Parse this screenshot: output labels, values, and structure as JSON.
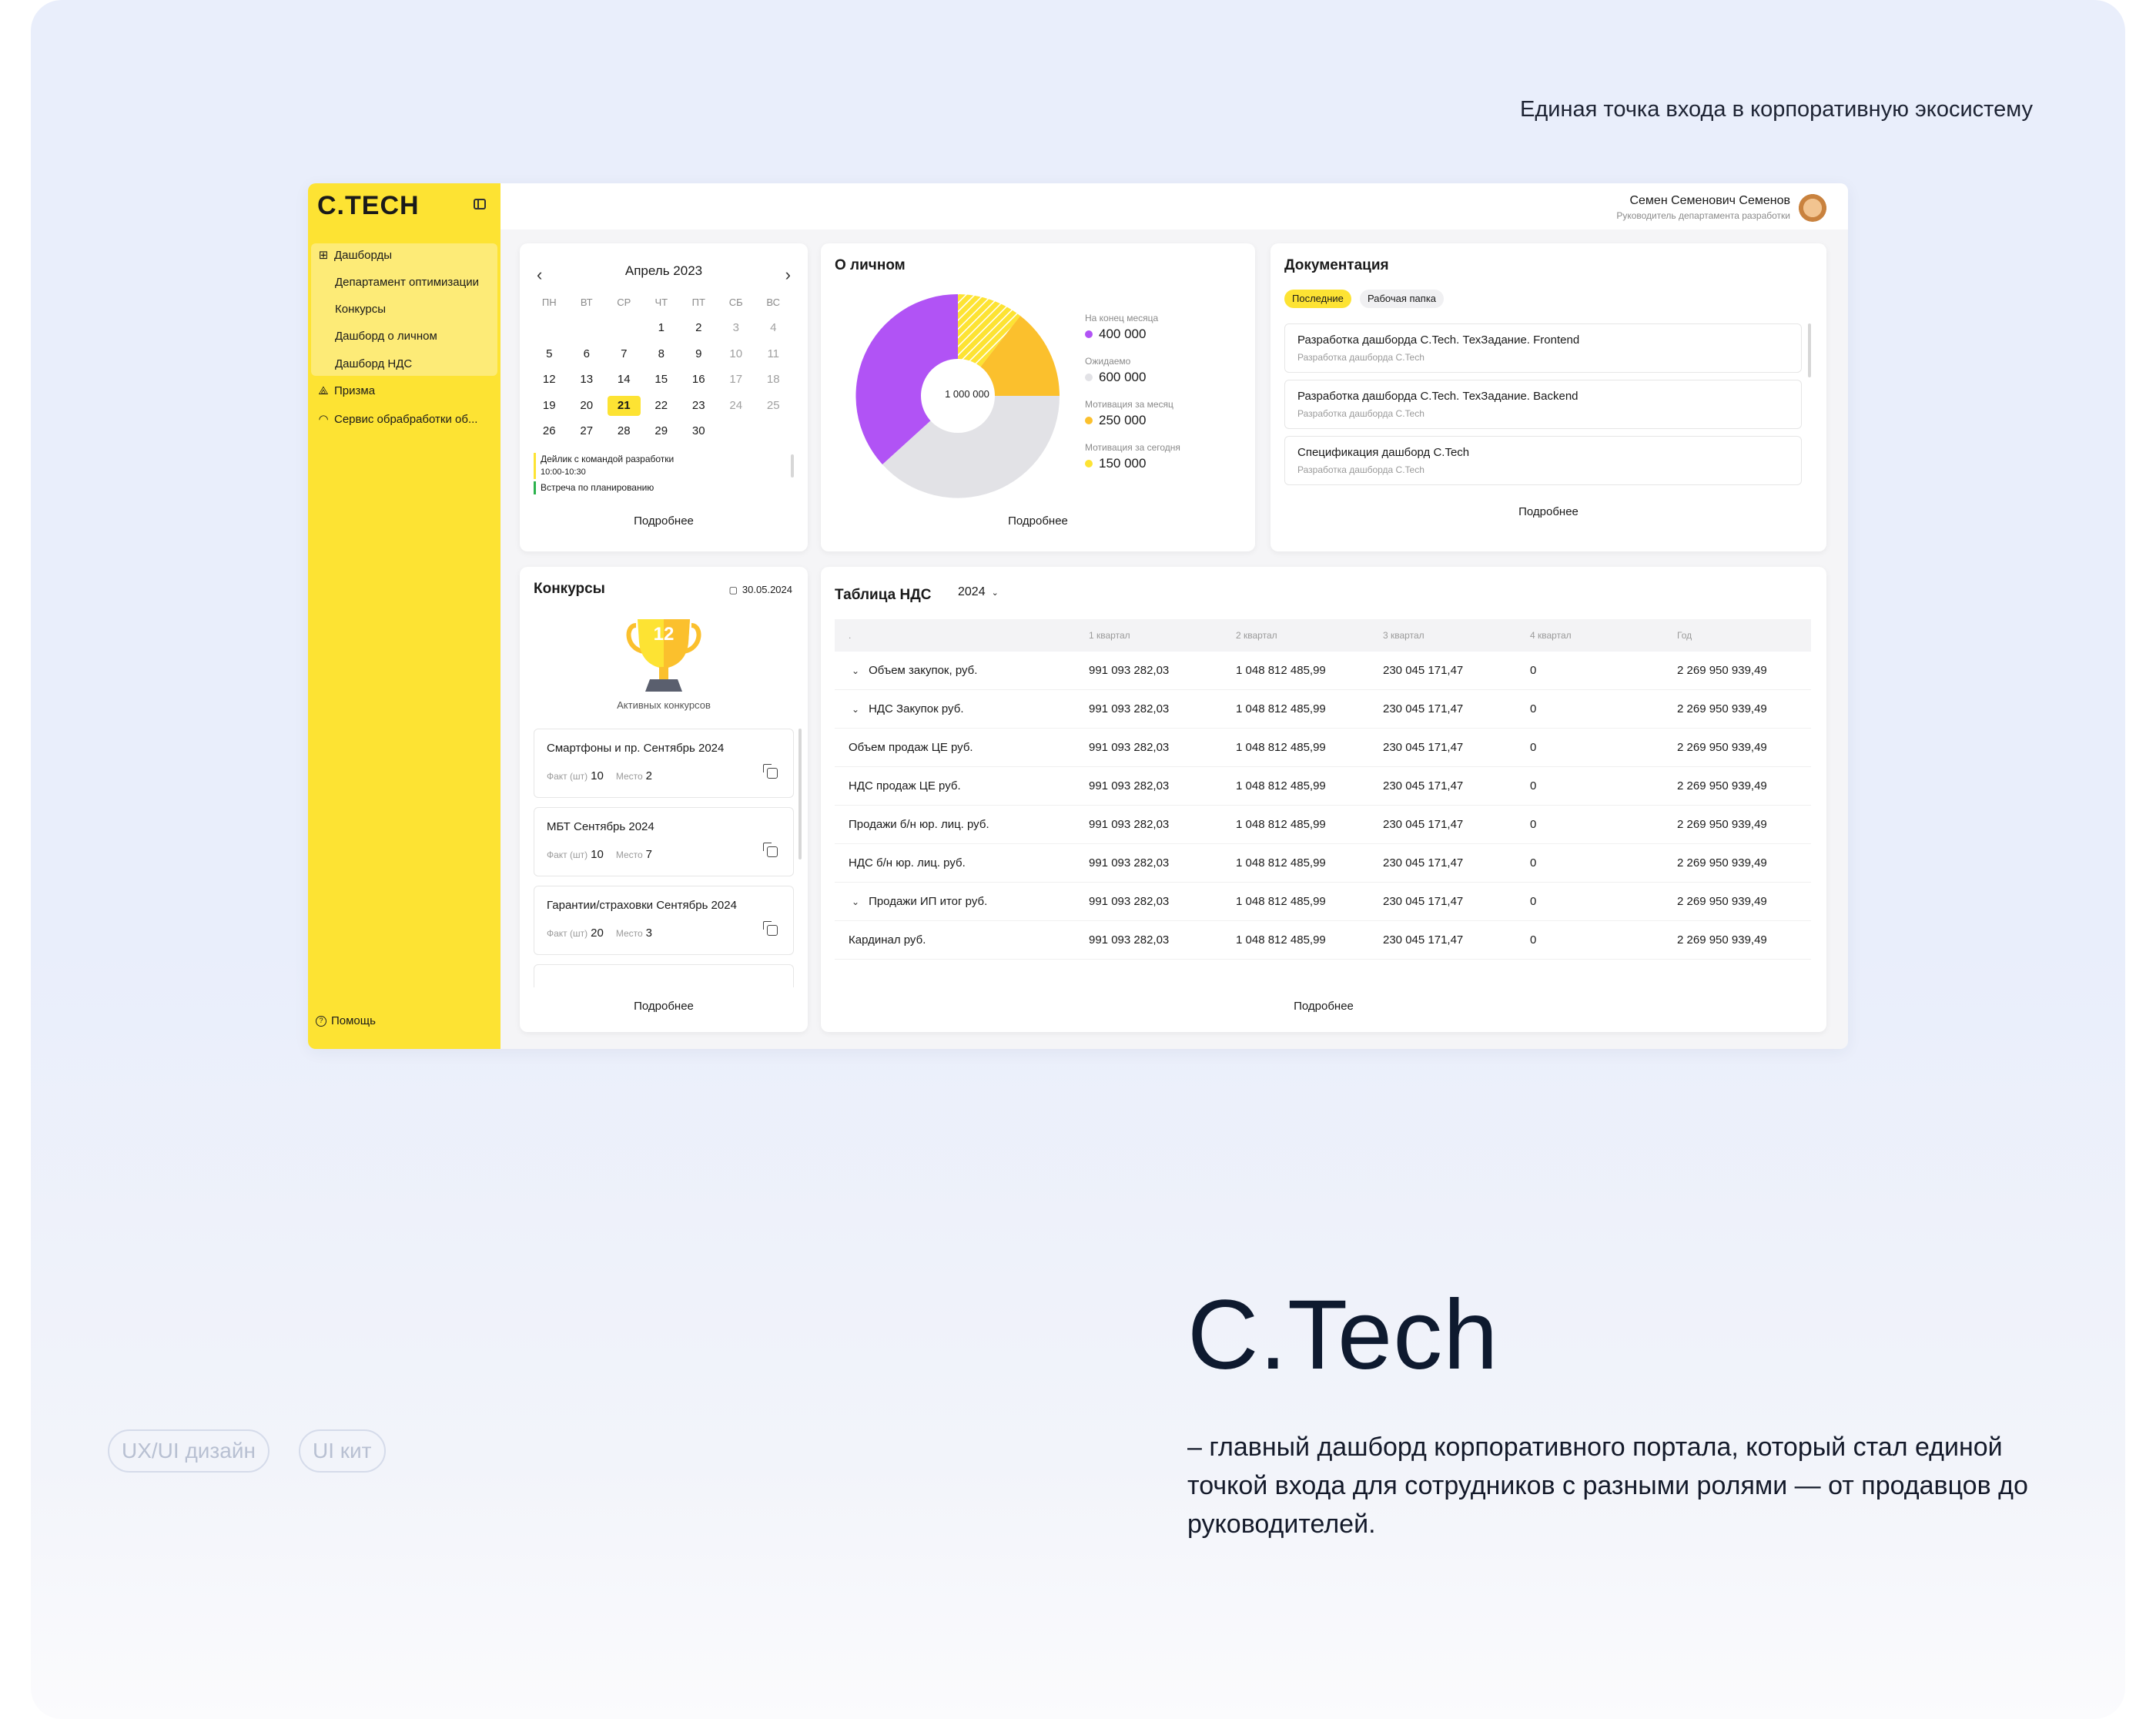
{
  "tagline": "Единая точка входа в корпоративную экосистему",
  "brand": {
    "name": "C.Tech",
    "description": "– главный дашборд корпоративного портала, который стал единой точкой входа для сотрудников с разными ролями — от продавцов до руководителей."
  },
  "chips": [
    "UX/UI дизайн",
    "UI кит"
  ],
  "app": {
    "logo": "C.TECH",
    "nav": {
      "dashboards": "Дашборды",
      "sub_items": [
        "Департамент оптимизации",
        "Конкурсы",
        "Дашборд о личном",
        "Дашборд НДС"
      ],
      "prizma": "Призма",
      "service": "Сервис обрабработки об...",
      "help": "Помощь"
    },
    "user": {
      "name": "Семен Семенович Семенов",
      "role": "Руководитель департамента разработки"
    },
    "more_label": "Подробнее",
    "calendar": {
      "month": "Апрель 2023",
      "weekdays": [
        "ПН",
        "ВТ",
        "СР",
        "ЧТ",
        "ПТ",
        "СБ",
        "ВС"
      ],
      "weeks": [
        [
          "",
          "",
          "",
          "1",
          "2",
          "3",
          "4"
        ],
        [
          "5",
          "6",
          "7",
          "8",
          "9",
          "10",
          "11"
        ],
        [
          "12",
          "13",
          "14",
          "15",
          "16",
          "17",
          "18"
        ],
        [
          "19",
          "20",
          "21",
          "22",
          "23",
          "24",
          "25"
        ],
        [
          "26",
          "27",
          "28",
          "29",
          "30",
          "",
          ""
        ]
      ],
      "today": "21",
      "events": [
        {
          "title": "Дейлик с командой разработки",
          "time": "10:00-10:30"
        },
        {
          "title": "Встреча по планированию"
        }
      ]
    },
    "personal": {
      "title": "О личном",
      "center": "1 000 000",
      "legend": [
        {
          "label": "На конец месяца",
          "value": "400 000",
          "color": "#b153f5"
        },
        {
          "label": "Ожидаемо",
          "value": "600 000",
          "color": "#e2e2e6"
        },
        {
          "label": "Мотивация за месяц",
          "value": "250 000",
          "color": "#fbc02d"
        },
        {
          "label": "Мотивация за сегодня",
          "value": "150 000",
          "color": "#fde333"
        }
      ]
    },
    "docs": {
      "title": "Документация",
      "tabs": [
        "Последние",
        "Рабочая папка"
      ],
      "items": [
        {
          "title": "Разработка дашборда C.Tech. ТехЗадание. Frontend",
          "sub": "Разработка дашборда C.Tech"
        },
        {
          "title": "Разработка дашборда C.Tech. ТехЗадание. Backend",
          "sub": "Разработка дашборда C.Tech"
        },
        {
          "title": "Спецификация дашборд C.Tech",
          "sub": "Разработка дашборда C.Tech"
        }
      ]
    },
    "contests": {
      "title": "Конкурсы",
      "date": "30.05.2024",
      "count": "12",
      "caption": "Активных конкурсов",
      "fact_label": "Факт (шт)",
      "place_label": "Место",
      "items": [
        {
          "name": "Смартфоны и пр. Сентябрь 2024",
          "fact": "10",
          "place": "2"
        },
        {
          "name": "МБТ Сентябрь 2024",
          "fact": "10",
          "place": "7"
        },
        {
          "name": "Гарантии/страховки Сентябрь 2024",
          "fact": "20",
          "place": "3"
        }
      ]
    },
    "vat": {
      "title": "Таблица НДС",
      "year": "2024",
      "headers": [
        ".",
        "1 квартал",
        "2 квартал",
        "3 квартал",
        "4 квартал",
        "Год"
      ],
      "rows": [
        {
          "name": "Объем закупок, руб.",
          "expand": true,
          "q1": "991 093 282,03",
          "q2": "1 048 812 485,99",
          "q3": "230 045 171,47",
          "q4": "0",
          "year": "2 269 950 939,49"
        },
        {
          "name": "НДС Закупок руб.",
          "expand": true,
          "q1": "991 093 282,03",
          "q2": "1 048 812 485,99",
          "q3": "230 045 171,47",
          "q4": "0",
          "year": "2 269 950 939,49"
        },
        {
          "name": "Объем продаж ЦЕ руб.",
          "expand": false,
          "q1": "991 093 282,03",
          "q2": "1 048 812 485,99",
          "q3": "230 045 171,47",
          "q4": "0",
          "year": "2 269 950 939,49"
        },
        {
          "name": "НДС продаж ЦЕ руб.",
          "expand": false,
          "q1": "991 093 282,03",
          "q2": "1 048 812 485,99",
          "q3": "230 045 171,47",
          "q4": "0",
          "year": "2 269 950 939,49"
        },
        {
          "name": "Продажи б/н юр. лиц. руб.",
          "expand": false,
          "q1": "991 093 282,03",
          "q2": "1 048 812 485,99",
          "q3": "230 045 171,47",
          "q4": "0",
          "year": "2 269 950 939,49"
        },
        {
          "name": "НДС б/н юр. лиц. руб.",
          "expand": false,
          "q1": "991 093 282,03",
          "q2": "1 048 812 485,99",
          "q3": "230 045 171,47",
          "q4": "0",
          "year": "2 269 950 939,49"
        },
        {
          "name": "Продажи ИП итог руб.",
          "expand": true,
          "q1": "991 093 282,03",
          "q2": "1 048 812 485,99",
          "q3": "230 045 171,47",
          "q4": "0",
          "year": "2 269 950 939,49"
        },
        {
          "name": "Кардинал руб.",
          "expand": false,
          "q1": "991 093 282,03",
          "q2": "1 048 812 485,99",
          "q3": "230 045 171,47",
          "q4": "0",
          "year": "2 269 950 939,49"
        }
      ]
    }
  }
}
